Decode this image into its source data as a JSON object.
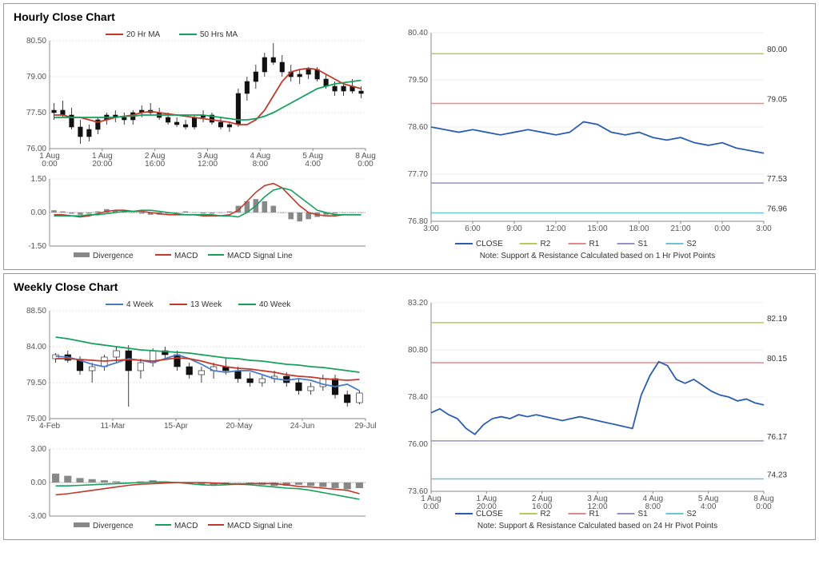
{
  "hourly": {
    "title": "Hourly Close Chart",
    "price_chart": {
      "type": "line+candlestick",
      "ylim": [
        76.0,
        80.5
      ],
      "yticks": [
        76.0,
        77.5,
        79.0,
        80.5
      ],
      "xticks": [
        "1 Aug\n0:00",
        "1 Aug\n20:00",
        "2 Aug\n16:00",
        "3 Aug\n12:00",
        "4 Aug\n8:00",
        "5 Aug\n4:00",
        "8 Aug\n0:00"
      ],
      "legend": [
        {
          "label": "20 Hr MA",
          "color": "#c0392b",
          "style": "line"
        },
        {
          "label": "50 Hrs MA",
          "color": "#16a05d",
          "style": "line"
        }
      ],
      "candles": [
        {
          "o": 77.5,
          "h": 77.9,
          "l": 77.2,
          "c": 77.6
        },
        {
          "o": 77.6,
          "h": 78.0,
          "l": 77.3,
          "c": 77.4
        },
        {
          "o": 77.4,
          "h": 77.7,
          "l": 76.8,
          "c": 76.9
        },
        {
          "o": 76.9,
          "h": 77.2,
          "l": 76.2,
          "c": 76.5
        },
        {
          "o": 76.5,
          "h": 77.0,
          "l": 76.3,
          "c": 76.8
        },
        {
          "o": 76.8,
          "h": 77.3,
          "l": 76.6,
          "c": 77.2
        },
        {
          "o": 77.2,
          "h": 77.5,
          "l": 77.0,
          "c": 77.4
        },
        {
          "o": 77.4,
          "h": 77.6,
          "l": 77.1,
          "c": 77.3
        },
        {
          "o": 77.3,
          "h": 77.5,
          "l": 77.0,
          "c": 77.2
        },
        {
          "o": 77.2,
          "h": 77.6,
          "l": 77.0,
          "c": 77.5
        },
        {
          "o": 77.5,
          "h": 77.8,
          "l": 77.3,
          "c": 77.6
        },
        {
          "o": 77.6,
          "h": 77.9,
          "l": 77.4,
          "c": 77.5
        },
        {
          "o": 77.5,
          "h": 77.7,
          "l": 77.2,
          "c": 77.3
        },
        {
          "o": 77.3,
          "h": 77.5,
          "l": 77.0,
          "c": 77.1
        },
        {
          "o": 77.1,
          "h": 77.3,
          "l": 76.9,
          "c": 77.0
        },
        {
          "o": 77.0,
          "h": 77.2,
          "l": 76.8,
          "c": 76.9
        },
        {
          "o": 76.9,
          "h": 77.4,
          "l": 76.8,
          "c": 77.3
        },
        {
          "o": 77.3,
          "h": 77.6,
          "l": 77.1,
          "c": 77.4
        },
        {
          "o": 77.4,
          "h": 77.5,
          "l": 77.0,
          "c": 77.1
        },
        {
          "o": 77.1,
          "h": 77.3,
          "l": 76.8,
          "c": 76.9
        },
        {
          "o": 76.9,
          "h": 77.1,
          "l": 76.7,
          "c": 77.0
        },
        {
          "o": 77.0,
          "h": 78.5,
          "l": 76.9,
          "c": 78.3
        },
        {
          "o": 78.3,
          "h": 79.0,
          "l": 78.0,
          "c": 78.8
        },
        {
          "o": 78.8,
          "h": 79.5,
          "l": 78.5,
          "c": 79.2
        },
        {
          "o": 79.2,
          "h": 80.0,
          "l": 79.0,
          "c": 79.8
        },
        {
          "o": 79.8,
          "h": 80.4,
          "l": 79.5,
          "c": 79.6
        },
        {
          "o": 79.6,
          "h": 79.9,
          "l": 79.0,
          "c": 79.2
        },
        {
          "o": 79.2,
          "h": 79.5,
          "l": 78.8,
          "c": 79.0
        },
        {
          "o": 79.0,
          "h": 79.3,
          "l": 78.7,
          "c": 79.1
        },
        {
          "o": 79.1,
          "h": 79.4,
          "l": 78.9,
          "c": 79.3
        },
        {
          "o": 79.3,
          "h": 79.4,
          "l": 78.8,
          "c": 78.9
        },
        {
          "o": 78.9,
          "h": 79.1,
          "l": 78.5,
          "c": 78.6
        },
        {
          "o": 78.6,
          "h": 78.8,
          "l": 78.2,
          "c": 78.4
        },
        {
          "o": 78.4,
          "h": 78.7,
          "l": 78.2,
          "c": 78.6
        },
        {
          "o": 78.6,
          "h": 78.9,
          "l": 78.3,
          "c": 78.4
        },
        {
          "o": 78.4,
          "h": 78.6,
          "l": 78.1,
          "c": 78.3
        }
      ],
      "ma20": [
        77.4,
        77.4,
        77.3,
        77.3,
        77.2,
        77.1,
        77.2,
        77.3,
        77.35,
        77.4,
        77.5,
        77.55,
        77.5,
        77.45,
        77.4,
        77.35,
        77.3,
        77.25,
        77.2,
        77.15,
        77.1,
        77.0,
        77.0,
        77.2,
        77.6,
        78.2,
        78.8,
        79.2,
        79.3,
        79.35,
        79.3,
        79.1,
        78.9,
        78.7,
        78.6,
        78.5
      ],
      "ma50": [
        77.3,
        77.3,
        77.3,
        77.3,
        77.3,
        77.3,
        77.3,
        77.3,
        77.35,
        77.35,
        77.4,
        77.4,
        77.4,
        77.4,
        77.4,
        77.4,
        77.4,
        77.4,
        77.35,
        77.3,
        77.25,
        77.2,
        77.2,
        77.25,
        77.35,
        77.5,
        77.7,
        77.9,
        78.1,
        78.3,
        78.5,
        78.6,
        78.7,
        78.75,
        78.8,
        78.85
      ],
      "line_width": 1.8,
      "candle_color": "#111",
      "grid_color": "#ccc",
      "axis_color": "#888"
    },
    "macd_chart": {
      "type": "macd",
      "ylim": [
        -1.5,
        1.5
      ],
      "yticks": [
        -1.5,
        0.0,
        1.5
      ],
      "legend": [
        {
          "label": "Divergence",
          "color": "#888",
          "style": "bar"
        },
        {
          "label": "MACD",
          "color": "#c0392b",
          "style": "line"
        },
        {
          "label": "MACD Signal Line",
          "color": "#16a05d",
          "style": "line"
        }
      ],
      "divergence": [
        0.1,
        0.05,
        -0.05,
        -0.1,
        -0.05,
        0.05,
        0.15,
        0.1,
        0.05,
        0.0,
        -0.05,
        -0.1,
        -0.1,
        -0.05,
        0.0,
        0.05,
        0.0,
        -0.05,
        -0.05,
        0.0,
        0.05,
        0.3,
        0.5,
        0.6,
        0.5,
        0.3,
        0.0,
        -0.3,
        -0.4,
        -0.3,
        -0.2,
        -0.1,
        -0.05,
        0.0,
        0.0,
        0.0
      ],
      "macd": [
        -0.1,
        -0.1,
        -0.15,
        -0.2,
        -0.15,
        -0.05,
        0.05,
        0.1,
        0.1,
        0.05,
        0.05,
        0.0,
        -0.05,
        -0.1,
        -0.1,
        -0.1,
        -0.1,
        -0.15,
        -0.15,
        -0.15,
        -0.1,
        0.1,
        0.5,
        0.9,
        1.2,
        1.3,
        1.1,
        0.7,
        0.3,
        0.0,
        -0.1,
        -0.15,
        -0.15,
        -0.1,
        -0.1,
        -0.1
      ],
      "signal": [
        -0.15,
        -0.15,
        -0.15,
        -0.15,
        -0.1,
        -0.1,
        -0.05,
        0.0,
        0.05,
        0.05,
        0.1,
        0.1,
        0.05,
        0.0,
        -0.05,
        -0.1,
        -0.1,
        -0.1,
        -0.1,
        -0.15,
        -0.15,
        -0.2,
        0.0,
        0.3,
        0.7,
        1.0,
        1.1,
        1.0,
        0.7,
        0.4,
        0.1,
        0.0,
        -0.1,
        -0.1,
        -0.1,
        -0.1
      ],
      "bar_color": "#888",
      "macd_color": "#c0392b",
      "signal_color": "#16a05d"
    },
    "sr_chart": {
      "type": "line",
      "ylim": [
        76.8,
        80.4
      ],
      "yticks": [
        76.8,
        77.7,
        78.6,
        79.5,
        80.4
      ],
      "xticks": [
        "3:00",
        "6:00",
        "9:00",
        "12:00",
        "15:00",
        "18:00",
        "21:00",
        "0:00",
        "3:00"
      ],
      "close_color": "#2a5db0",
      "close": [
        78.6,
        78.55,
        78.5,
        78.55,
        78.5,
        78.45,
        78.5,
        78.55,
        78.5,
        78.45,
        78.5,
        78.7,
        78.65,
        78.5,
        78.45,
        78.5,
        78.4,
        78.35,
        78.4,
        78.3,
        78.25,
        78.3,
        78.2,
        78.15,
        78.1
      ],
      "levels": [
        {
          "name": "R2",
          "value": 80.0,
          "color": "#b7c95b"
        },
        {
          "name": "R1",
          "value": 79.05,
          "color": "#e38a8a"
        },
        {
          "name": "S1",
          "value": 77.53,
          "color": "#9a8fc9"
        },
        {
          "name": "S2",
          "value": 76.96,
          "color": "#6cc5d6"
        }
      ],
      "legend": [
        {
          "label": "CLOSE",
          "color": "#2a5db0"
        },
        {
          "label": "R2",
          "color": "#b7c95b"
        },
        {
          "label": "R1",
          "color": "#e38a8a"
        },
        {
          "label": "S1",
          "color": "#9a8fc9"
        },
        {
          "label": "S2",
          "color": "#6cc5d6"
        }
      ],
      "note": "Note: Support & Resistance Calculated based on 1 Hr Pivot Points",
      "line_width": 1.8,
      "grid_color": "#ddd"
    }
  },
  "weekly": {
    "title": "Weekly Close Chart",
    "price_chart": {
      "type": "line+candlestick",
      "ylim": [
        75.0,
        88.5
      ],
      "yticks": [
        75.0,
        79.5,
        84.0,
        88.5
      ],
      "xticks": [
        "4-Feb",
        "11-Mar",
        "15-Apr",
        "20-May",
        "24-Jun",
        "29-Jul"
      ],
      "legend": [
        {
          "label": "4 Week",
          "color": "#4a7bc8",
          "style": "line"
        },
        {
          "label": "13 Week",
          "color": "#c0392b",
          "style": "line"
        },
        {
          "label": "40 Week",
          "color": "#16a05d",
          "style": "line"
        }
      ],
      "candles": [
        {
          "o": 82.5,
          "h": 83.2,
          "l": 82.0,
          "c": 83.0
        },
        {
          "o": 83.0,
          "h": 83.5,
          "l": 82.0,
          "c": 82.3
        },
        {
          "o": 82.3,
          "h": 82.8,
          "l": 80.5,
          "c": 81.0
        },
        {
          "o": 81.0,
          "h": 82.0,
          "l": 79.5,
          "c": 81.5
        },
        {
          "o": 81.5,
          "h": 83.0,
          "l": 81.0,
          "c": 82.7
        },
        {
          "o": 82.7,
          "h": 84.0,
          "l": 82.0,
          "c": 83.5
        },
        {
          "o": 83.5,
          "h": 84.2,
          "l": 76.5,
          "c": 81.0
        },
        {
          "o": 81.0,
          "h": 82.5,
          "l": 80.0,
          "c": 82.0
        },
        {
          "o": 82.0,
          "h": 83.8,
          "l": 81.5,
          "c": 83.5
        },
        {
          "o": 83.5,
          "h": 84.0,
          "l": 82.5,
          "c": 83.0
        },
        {
          "o": 83.0,
          "h": 83.5,
          "l": 81.0,
          "c": 81.5
        },
        {
          "o": 81.5,
          "h": 82.0,
          "l": 80.0,
          "c": 80.5
        },
        {
          "o": 80.5,
          "h": 81.5,
          "l": 79.5,
          "c": 81.0
        },
        {
          "o": 81.0,
          "h": 82.0,
          "l": 80.0,
          "c": 81.5
        },
        {
          "o": 81.5,
          "h": 82.5,
          "l": 80.5,
          "c": 81.0
        },
        {
          "o": 81.0,
          "h": 81.5,
          "l": 79.5,
          "c": 80.0
        },
        {
          "o": 80.0,
          "h": 80.8,
          "l": 79.0,
          "c": 79.5
        },
        {
          "o": 79.5,
          "h": 80.5,
          "l": 79.0,
          "c": 80.0
        },
        {
          "o": 80.0,
          "h": 81.0,
          "l": 79.5,
          "c": 80.3
        },
        {
          "o": 80.3,
          "h": 80.8,
          "l": 79.0,
          "c": 79.5
        },
        {
          "o": 79.5,
          "h": 80.0,
          "l": 78.0,
          "c": 78.5
        },
        {
          "o": 78.5,
          "h": 79.5,
          "l": 78.0,
          "c": 79.0
        },
        {
          "o": 79.0,
          "h": 80.5,
          "l": 78.5,
          "c": 80.0
        },
        {
          "o": 80.0,
          "h": 80.5,
          "l": 77.5,
          "c": 78.0
        },
        {
          "o": 78.0,
          "h": 78.5,
          "l": 76.5,
          "c": 77.0
        },
        {
          "o": 77.0,
          "h": 78.5,
          "l": 76.8,
          "c": 78.2
        }
      ],
      "ma4": [
        82.8,
        82.7,
        82.3,
        81.8,
        81.5,
        82.0,
        82.5,
        82.3,
        82.0,
        82.5,
        83.0,
        82.5,
        81.8,
        81.0,
        80.8,
        81.0,
        81.0,
        80.5,
        80.0,
        79.8,
        80.0,
        79.8,
        79.3,
        79.0,
        79.3,
        78.5
      ],
      "ma13": [
        82.5,
        82.5,
        82.4,
        82.3,
        82.2,
        82.3,
        82.4,
        82.3,
        82.2,
        82.4,
        82.6,
        82.5,
        82.2,
        81.8,
        81.5,
        81.3,
        81.2,
        81.0,
        80.8,
        80.5,
        80.3,
        80.2,
        80.0,
        79.9,
        79.8,
        79.9
      ],
      "ma40": [
        85.2,
        85.0,
        84.7,
        84.4,
        84.2,
        84.0,
        83.8,
        83.6,
        83.5,
        83.4,
        83.3,
        83.2,
        83.0,
        82.8,
        82.6,
        82.5,
        82.3,
        82.2,
        82.0,
        81.8,
        81.7,
        81.5,
        81.4,
        81.2,
        81.0,
        80.8
      ],
      "candle_up": "#fff",
      "candle_dn": "#111",
      "candle_stroke": "#111",
      "grid_color": "#ccc",
      "axis_color": "#888",
      "line_width": 1.8
    },
    "macd_chart": {
      "type": "macd",
      "ylim": [
        -3.0,
        3.0
      ],
      "yticks": [
        -3.0,
        0.0,
        3.0
      ],
      "legend": [
        {
          "label": "Divergence",
          "color": "#888",
          "style": "bar"
        },
        {
          "label": "MACD",
          "color": "#16a05d",
          "style": "line"
        },
        {
          "label": "MACD Signal Line",
          "color": "#c0392b",
          "style": "line"
        }
      ],
      "divergence": [
        0.8,
        0.6,
        0.4,
        0.3,
        0.2,
        0.1,
        0.0,
        0.1,
        0.2,
        0.1,
        0.0,
        -0.1,
        -0.2,
        -0.2,
        -0.1,
        0.0,
        -0.1,
        -0.2,
        -0.3,
        -0.3,
        -0.2,
        -0.3,
        -0.4,
        -0.5,
        -0.6,
        -0.5
      ],
      "macd": [
        -0.3,
        -0.3,
        -0.25,
        -0.2,
        -0.15,
        -0.1,
        -0.05,
        0.0,
        0.05,
        0.05,
        0.0,
        -0.1,
        -0.2,
        -0.25,
        -0.2,
        -0.15,
        -0.2,
        -0.3,
        -0.4,
        -0.5,
        -0.55,
        -0.7,
        -0.9,
        -1.1,
        -1.3,
        -1.5
      ],
      "signal": [
        -1.1,
        -1.0,
        -0.85,
        -0.7,
        -0.55,
        -0.4,
        -0.25,
        -0.15,
        -0.1,
        -0.05,
        0.0,
        0.0,
        0.0,
        -0.05,
        -0.1,
        -0.15,
        -0.1,
        -0.1,
        -0.1,
        -0.2,
        -0.35,
        -0.4,
        -0.5,
        -0.6,
        -0.7,
        -1.0
      ],
      "bar_color": "#888"
    },
    "sr_chart": {
      "type": "line",
      "ylim": [
        73.6,
        83.2
      ],
      "yticks": [
        73.6,
        76.0,
        78.4,
        80.8,
        83.2
      ],
      "xticks": [
        "1 Aug\n0:00",
        "1 Aug\n20:00",
        "2 Aug\n16:00",
        "3 Aug\n12:00",
        "4 Aug\n8:00",
        "5 Aug\n4:00",
        "8 Aug\n0:00"
      ],
      "close_color": "#2a5db0",
      "close": [
        77.6,
        77.8,
        77.5,
        77.3,
        76.8,
        76.5,
        77.0,
        77.3,
        77.4,
        77.3,
        77.5,
        77.4,
        77.5,
        77.4,
        77.3,
        77.2,
        77.3,
        77.4,
        77.3,
        77.2,
        77.1,
        77.0,
        76.9,
        76.8,
        78.5,
        79.5,
        80.2,
        80.0,
        79.3,
        79.1,
        79.3,
        79.0,
        78.7,
        78.5,
        78.4,
        78.2,
        78.3,
        78.1,
        78.0
      ],
      "levels": [
        {
          "name": "R2",
          "value": 82.19,
          "color": "#b7c95b"
        },
        {
          "name": "R1",
          "value": 80.15,
          "color": "#e38a8a"
        },
        {
          "name": "S1",
          "value": 76.17,
          "color": "#9a8fc9"
        },
        {
          "name": "S2",
          "value": 74.23,
          "color": "#6cc5d6"
        }
      ],
      "legend": [
        {
          "label": "CLOSE",
          "color": "#2a5db0"
        },
        {
          "label": "R2",
          "color": "#b7c95b"
        },
        {
          "label": "R1",
          "color": "#e38a8a"
        },
        {
          "label": "S1",
          "color": "#9a8fc9"
        },
        {
          "label": "S2",
          "color": "#6cc5d6"
        }
      ],
      "note": "Note: Support & Resistance Calculated based on 24 Hr Pivot Points",
      "line_width": 1.8,
      "grid_color": "#ddd"
    }
  }
}
